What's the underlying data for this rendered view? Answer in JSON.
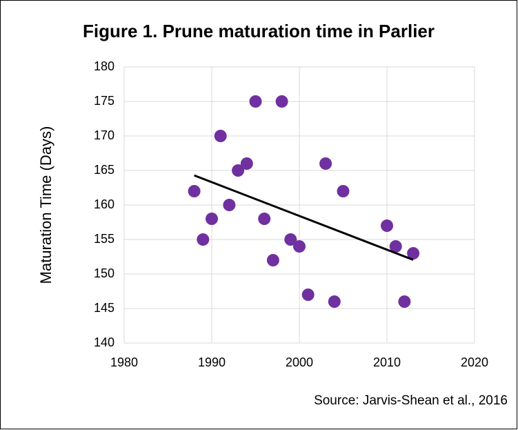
{
  "chart_data": {
    "type": "scatter",
    "title": "Figure 1. Prune maturation time in Parlier",
    "y_label": "Maturation Time (Days)",
    "source": "Source: Jarvis-Shean et al., 2016",
    "x": [
      1988,
      1989,
      1990,
      1991,
      1992,
      1993,
      1994,
      1995,
      1996,
      1997,
      1998,
      1999,
      2000,
      2001,
      2003,
      2004,
      2005,
      2010,
      2011,
      2012,
      2013
    ],
    "values": [
      162,
      155,
      158,
      170,
      160,
      165,
      166,
      175,
      158,
      152,
      175,
      155,
      154,
      147,
      166,
      146,
      162,
      157,
      154,
      146,
      153
    ],
    "color": "#7030a0",
    "trendline": "linear",
    "trendline_color": "#000000",
    "xlim": [
      1980,
      2020
    ],
    "xticks": [
      1980,
      1990,
      2000,
      2010,
      2020
    ],
    "ylim": [
      140,
      180
    ],
    "yticks": [
      140,
      145,
      150,
      155,
      160,
      165,
      170,
      175,
      180
    ],
    "grid": true
  }
}
